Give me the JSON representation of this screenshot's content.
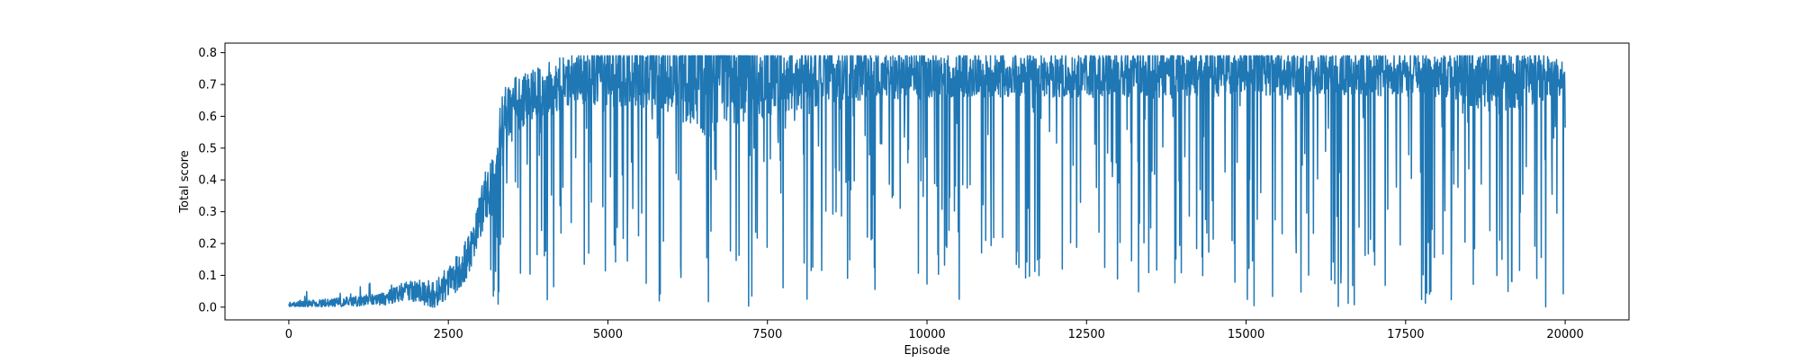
{
  "chart_data": {
    "type": "line",
    "title": "",
    "xlabel": "Episode",
    "ylabel": "Total score",
    "xlim": [
      -1000,
      21000
    ],
    "ylim": [
      -0.04,
      0.83
    ],
    "x_ticks": [
      0,
      2500,
      5000,
      7500,
      10000,
      12500,
      15000,
      17500,
      20000
    ],
    "x_tick_labels": [
      "0",
      "2500",
      "5000",
      "7500",
      "10000",
      "12500",
      "15000",
      "17500",
      "20000"
    ],
    "y_ticks": [
      0.0,
      0.1,
      0.2,
      0.3,
      0.4,
      0.5,
      0.6,
      0.7,
      0.8
    ],
    "y_tick_labels": [
      "0.0",
      "0.1",
      "0.2",
      "0.3",
      "0.4",
      "0.5",
      "0.6",
      "0.7",
      "0.8"
    ],
    "grid": false,
    "legend": "none",
    "series": [
      {
        "color": "#1f77b4",
        "x_start": 0,
        "x_end": 20000,
        "trend": {
          "x": [
            0,
            500,
            1000,
            1500,
            1800,
            2000,
            2300,
            2500,
            2700,
            2900,
            3000,
            3200,
            3300,
            3500,
            4000,
            4500,
            5000,
            6000,
            7000,
            8000,
            10000,
            12000,
            15000,
            18000,
            20000
          ],
          "y": [
            0.01,
            0.012,
            0.018,
            0.025,
            0.05,
            0.05,
            0.04,
            0.08,
            0.12,
            0.2,
            0.3,
            0.4,
            0.55,
            0.62,
            0.68,
            0.72,
            0.73,
            0.73,
            0.72,
            0.72,
            0.73,
            0.73,
            0.74,
            0.73,
            0.72
          ]
        },
        "spread": {
          "x": [
            0,
            1500,
            2500,
            3000,
            3300,
            3500,
            4500,
            5000,
            6000,
            6500,
            7000,
            8000,
            9000,
            10000,
            12000,
            14000,
            16000,
            18000,
            19000,
            20000
          ],
          "y": [
            0.008,
            0.02,
            0.05,
            0.08,
            0.12,
            0.1,
            0.08,
            0.1,
            0.12,
            0.2,
            0.15,
            0.1,
            0.08,
            0.07,
            0.07,
            0.08,
            0.07,
            0.07,
            0.12,
            0.05
          ]
        },
        "dip_rate": 0.12,
        "dip_min": 0.0,
        "cap_max": 0.79
      }
    ]
  }
}
